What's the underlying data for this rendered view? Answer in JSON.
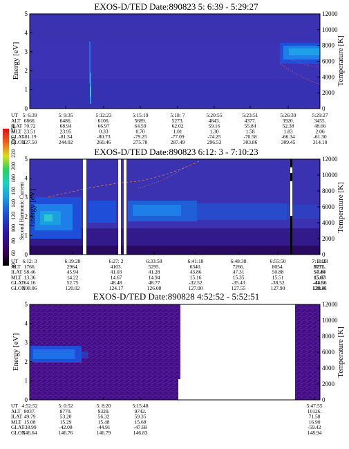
{
  "colorbar": {
    "label": "Second Harmonic Current",
    "ticks": [
      "40",
      "60",
      "80",
      "100",
      "120",
      "140",
      "160",
      "180",
      "200",
      "220",
      "240",
      "250"
    ],
    "colors": [
      "#000000",
      "#3a005a",
      "#2a1aa8",
      "#1f4fd8",
      "#1aa0e0",
      "#1fd0c0",
      "#28d060",
      "#7ad820",
      "#d8e020",
      "#f0b020",
      "#f06020",
      "#e01010"
    ]
  },
  "chart_data": [
    {
      "type": "heatmap",
      "title": "EXOS-D/TED   Date:890823   5: 6:39 - 5:29:27",
      "ylabel": "Energy [eV]",
      "y2label": "Temperature [K]",
      "ylim": [
        0,
        5
      ],
      "y2lim": [
        0,
        12000
      ],
      "yticks": [
        "0",
        "1",
        "2",
        "3",
        "4",
        "5"
      ],
      "y2ticks": [
        "0",
        "2000",
        "4000",
        "6000",
        "8000",
        "10000",
        "12000"
      ],
      "orbit_labels": [
        "UT",
        "ALT",
        "ILAT",
        "MLT",
        "GLAT",
        "GLON"
      ],
      "orbit_columns": [
        [
          "5: 6:39",
          "6866.",
          "70.72",
          "23.51",
          "-81.19",
          "227.50"
        ],
        [
          "5: 9:35",
          "6486.",
          "68.94",
          "23.95",
          "-81.34",
          "244.02"
        ],
        [
          "5:12:23",
          "6106.",
          "66.97",
          "0.33",
          "-80.73",
          "260.46"
        ],
        [
          "5:15:19",
          "5689.",
          "64.59",
          "0.70",
          "-79.25",
          "275.78"
        ],
        [
          "5:18: 7",
          "5273.",
          "62.02",
          "1.01",
          "-77.09",
          "287.49"
        ],
        [
          "5:20:55",
          "4843.",
          "59.16",
          "1.30",
          "-74.25",
          "296.53"
        ],
        [
          "5:23:51",
          "4377.",
          "55.84",
          "1.58",
          "-70.58",
          "303.86"
        ],
        [
          "5:26:39",
          "3920.",
          "52.38",
          "1.83",
          "-66.34",
          "309.45"
        ],
        [
          "5:29:27",
          "3455.",
          "48.66",
          "2.06",
          "-61.30",
          "314.10"
        ]
      ]
    },
    {
      "type": "heatmap",
      "title": "EXOS-D/TED   Date:890823   6:12: 3 - 7:10:23",
      "ylabel": "Energy [eV]",
      "y2label": "Temperature [K]",
      "ylim": [
        0,
        5
      ],
      "y2lim": [
        0,
        12000
      ],
      "yticks": [
        "0",
        "1",
        "2",
        "3",
        "4",
        "5"
      ],
      "y2ticks": [
        "0",
        "2000",
        "4000",
        "6000",
        "8000",
        "10000",
        "12000"
      ],
      "orbit_labels": [
        "UT",
        "ALT",
        "ILAT",
        "MLT",
        "GLAT",
        "GLON"
      ],
      "orbit_columns": [
        [
          "6:12: 3",
          "1766.",
          "58.46",
          "13.36",
          "64.16",
          "108.06"
        ],
        [
          "6:19:28",
          "2964.",
          "45.94",
          "14.22",
          "52.75",
          "120.02"
        ],
        [
          "6:27: 2",
          "4103.",
          "41.03",
          "14.67",
          "48.48",
          "124.17"
        ],
        [
          "6:33:58",
          "5295.",
          "41.28",
          "14.94",
          "48.77",
          "126.08"
        ],
        [
          "6:41:18",
          "6340.",
          "43.86",
          "15.16",
          "-32.52",
          "127.00"
        ],
        [
          "6:48:38",
          "7266.",
          "47.31",
          "15.35",
          "-35.43",
          "127.55"
        ],
        [
          "6:55:50",
          "8054.",
          "50.88",
          "15.51",
          "-38.52",
          "127.90"
        ],
        [
          "7: 3:10",
          "8731.",
          "54.44",
          "15.67",
          "-41.61",
          "128.16"
        ],
        [
          "7:10:23",
          "9275.",
          "57.80",
          "15.83",
          "-44.56",
          "128.41"
        ]
      ]
    },
    {
      "type": "heatmap",
      "title": "EXOS-D/TED   Date:890828   4:52:52 - 5:52:51",
      "ylabel": "Energy [eV]",
      "y2label": "Temperature [K]",
      "ylim": [
        0,
        5
      ],
      "y2lim": [
        0,
        12000
      ],
      "yticks": [
        "0",
        "1",
        "2",
        "3",
        "4",
        "5"
      ],
      "y2ticks": [
        "0",
        "2000",
        "4000",
        "6000",
        "8000",
        "10000",
        "12000"
      ],
      "orbit_labels": [
        "UT",
        "ALT",
        "ILAT",
        "MLT",
        "GLAT",
        "GLON"
      ],
      "orbit_columns": [
        [
          "4:52:52",
          "8037.",
          "49.79",
          "15.08",
          "-38.99",
          "146.64"
        ],
        [
          "5: 0:52",
          "8770.",
          "53.20",
          "15.29",
          "-42.08",
          "146.76"
        ],
        [
          "5: 8:20",
          "9320.",
          "56.32",
          "15.48",
          "-44.91",
          "146.79"
        ],
        [
          "5:15:48",
          "9742.",
          "59.35",
          "15.68",
          "-47.68",
          "146.83"
        ],
        [
          "5:47:55",
          "10126.",
          "71.58",
          "16.90",
          "-59.42",
          "148.94"
        ]
      ]
    }
  ]
}
